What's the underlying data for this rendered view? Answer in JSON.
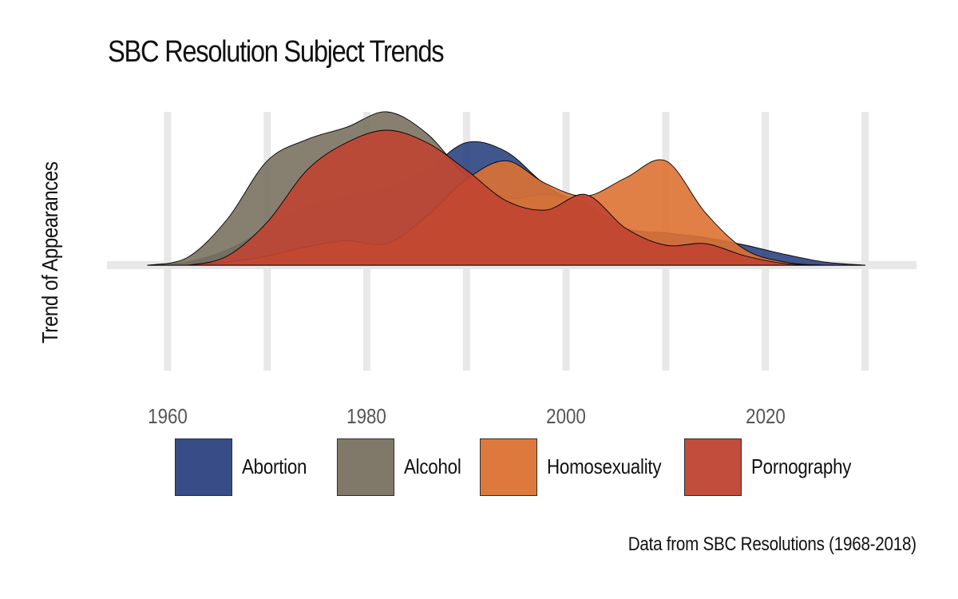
{
  "chart_data": {
    "type": "area",
    "title": "SBC Resolution Subject Trends",
    "xlabel": "",
    "ylabel": "Trend of Appearances",
    "caption": "Data from SBC Resolutions (1968-2018)",
    "xlim": [
      1952,
      2035
    ],
    "ylim": [
      -1,
      1
    ],
    "x_ticks": [
      1960,
      1980,
      2000,
      2020
    ],
    "grid": true,
    "legend_position": "bottom",
    "x": [
      1958,
      1962,
      1966,
      1970,
      1974,
      1978,
      1982,
      1986,
      1990,
      1994,
      1998,
      2002,
      2006,
      2010,
      2014,
      2018,
      2022,
      2026,
      2030
    ],
    "series": [
      {
        "name": "Abortion",
        "color": "#2e4482",
        "values": [
          0,
          0.02,
          0.1,
          0.24,
          0.38,
          0.45,
          0.5,
          0.62,
          0.8,
          0.74,
          0.52,
          0.38,
          0.24,
          0.21,
          0.18,
          0.13,
          0.07,
          0.02,
          0
        ]
      },
      {
        "name": "Alcohol",
        "color": "#7a7262",
        "values": [
          0,
          0.05,
          0.3,
          0.68,
          0.82,
          0.9,
          1.0,
          0.86,
          0.58,
          0.44,
          0.46,
          0.4,
          0.22,
          0.13,
          0.1,
          0.04,
          0.01,
          0,
          0
        ]
      },
      {
        "name": "Homosexuality",
        "color": "#dd7233",
        "values": [
          0,
          0,
          0.02,
          0.06,
          0.12,
          0.16,
          0.14,
          0.32,
          0.56,
          0.68,
          0.53,
          0.45,
          0.57,
          0.68,
          0.34,
          0.1,
          0.02,
          0,
          0
        ]
      },
      {
        "name": "Pornography",
        "color": "#c04432",
        "values": [
          0,
          0,
          0.06,
          0.28,
          0.62,
          0.8,
          0.88,
          0.8,
          0.62,
          0.42,
          0.36,
          0.46,
          0.24,
          0.13,
          0.14,
          0.06,
          0.01,
          0,
          0
        ]
      }
    ]
  }
}
